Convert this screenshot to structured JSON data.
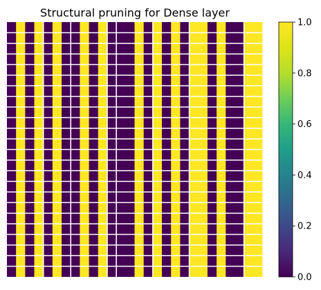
{
  "chart_data": {
    "type": "heatmap",
    "title": "Structural pruning for Dense layer",
    "xlabel": "",
    "ylabel": "",
    "colormap": "viridis",
    "column_values": [
      0,
      1,
      0,
      1,
      0,
      1,
      0,
      0,
      1,
      0,
      1,
      0,
      0,
      0,
      1,
      0,
      1,
      0,
      1,
      0,
      1,
      1,
      0,
      1,
      0,
      0,
      1,
      1
    ],
    "rows": 24,
    "row_blocks_visible": true,
    "colorbar": {
      "range": [
        0.0,
        1.0
      ],
      "ticks": [
        "0.0",
        "0.2",
        "0.4",
        "0.6",
        "0.8",
        "1.0"
      ]
    }
  },
  "colors": {
    "low": "#440154",
    "high": "#fde725",
    "gridline": "#ffffff"
  }
}
